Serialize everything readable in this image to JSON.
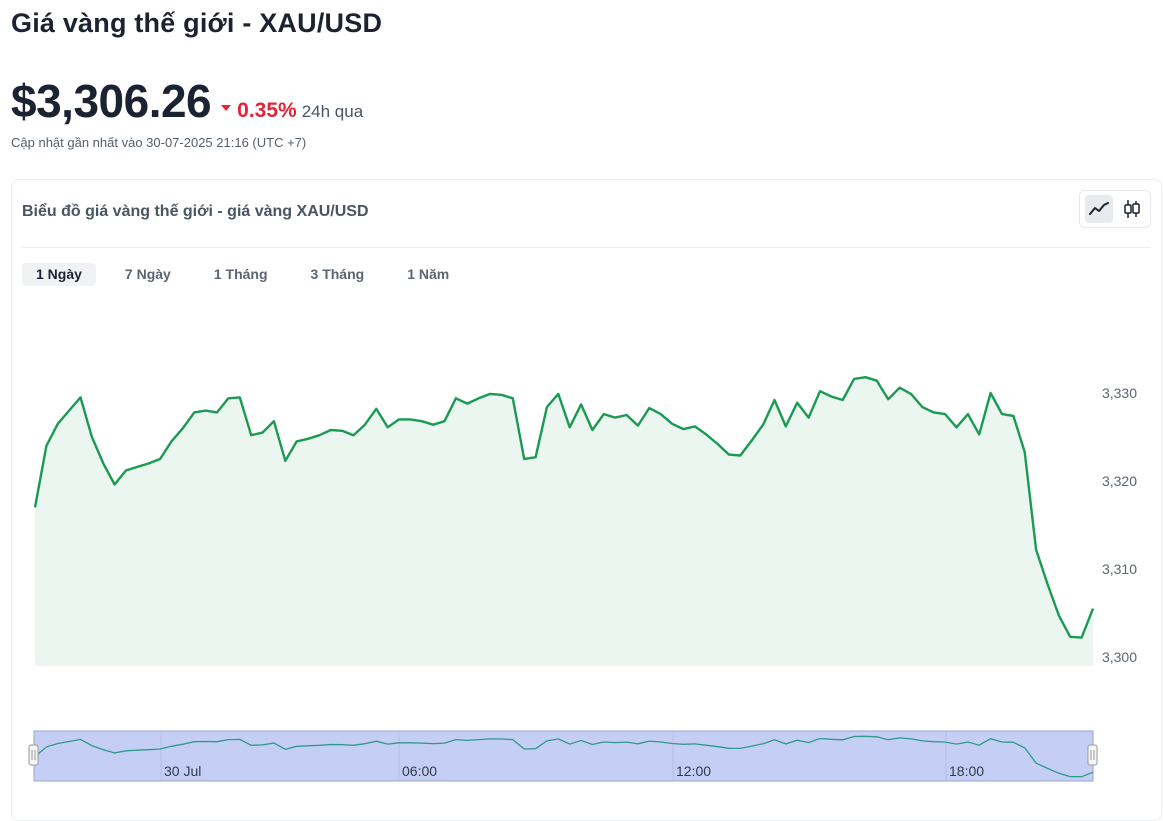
{
  "header": {
    "title": "Giá vàng thế giới - XAU/USD",
    "price": "$3,306.26",
    "change_pct": "0.35%",
    "change_period": "24h qua",
    "updated": "Cập nhật gần nhất vào 30-07-2025 21:16 (UTC +7)"
  },
  "card": {
    "title": "Biểu đồ giá vàng thế giới - giá vàng XAU/USD",
    "view_buttons": [
      {
        "icon": "line-chart-icon",
        "active": true
      },
      {
        "icon": "candlestick-icon",
        "active": false
      }
    ],
    "tabs": [
      {
        "label": "1 Ngày",
        "active": true
      },
      {
        "label": "7 Ngày",
        "active": false
      },
      {
        "label": "1 Tháng",
        "active": false
      },
      {
        "label": "3 Tháng",
        "active": false
      },
      {
        "label": "1 Năm",
        "active": false
      }
    ]
  },
  "colors": {
    "line": "#1a9a52",
    "area": "#eaf6ef",
    "down": "#e0243a",
    "navigator_fill": "#c5cef5",
    "navigator_line": "#2f9a8a"
  },
  "chart_data": {
    "type": "line",
    "y_ticks": [
      "3,330",
      "3,320",
      "3,310",
      "3,300"
    ],
    "y_tick_values": [
      3330,
      3320,
      3310,
      3300
    ],
    "ylim": [
      3299,
      3332
    ],
    "navigator_labels": [
      "30 Jul",
      "06:00",
      "12:00",
      "18:00"
    ],
    "values": [
      3317.0,
      3324.0,
      3326.5,
      3328.0,
      3329.5,
      3325.0,
      3322.0,
      3319.6,
      3321.2,
      3321.6,
      3322.0,
      3322.5,
      3324.5,
      3326.0,
      3327.8,
      3328.0,
      3327.8,
      3329.4,
      3329.5,
      3325.2,
      3325.5,
      3326.8,
      3322.3,
      3324.5,
      3324.8,
      3325.2,
      3325.8,
      3325.7,
      3325.2,
      3326.4,
      3328.2,
      3326.1,
      3327.0,
      3327.0,
      3326.8,
      3326.4,
      3326.8,
      3329.4,
      3328.8,
      3329.4,
      3329.9,
      3329.8,
      3329.4,
      3322.5,
      3322.7,
      3328.4,
      3329.9,
      3326.1,
      3328.7,
      3325.8,
      3327.6,
      3327.2,
      3327.5,
      3326.3,
      3328.3,
      3327.6,
      3326.5,
      3325.9,
      3326.2,
      3325.3,
      3324.2,
      3323.0,
      3322.9,
      3324.6,
      3326.4,
      3329.2,
      3326.2,
      3328.9,
      3327.2,
      3330.2,
      3329.6,
      3329.2,
      3331.6,
      3331.8,
      3331.4,
      3329.3,
      3330.6,
      3329.9,
      3328.4,
      3327.8,
      3327.6,
      3326.1,
      3327.6,
      3325.3,
      3330.0,
      3327.6,
      3327.4,
      3323.3,
      3312.2,
      3308.3,
      3304.7,
      3302.3,
      3302.2,
      3305.5
    ]
  }
}
